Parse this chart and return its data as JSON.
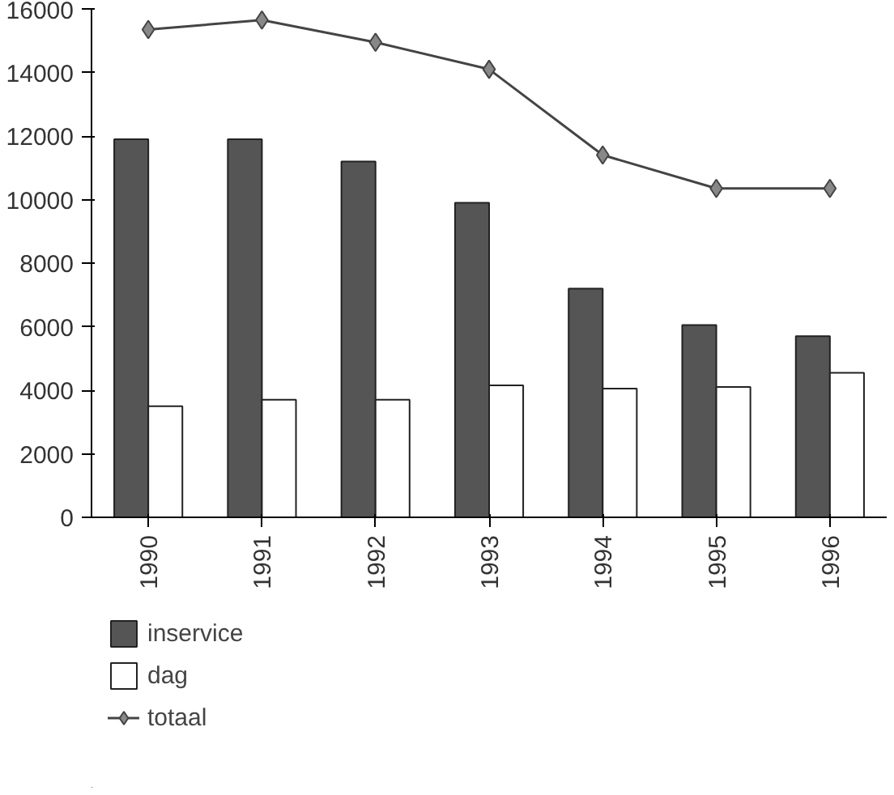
{
  "chart_data": {
    "type": "bar",
    "categories": [
      "1990",
      "1991",
      "1992",
      "1993",
      "1994",
      "1995",
      "1996"
    ],
    "series": [
      {
        "name": "inservice",
        "color": "#555555",
        "values": [
          11900,
          11900,
          11200,
          9900,
          7200,
          6050,
          5700
        ]
      },
      {
        "name": "dag",
        "color": "#ffffff",
        "values": [
          3500,
          3700,
          3700,
          4150,
          4050,
          4100,
          4550
        ]
      },
      {
        "name": "totaal",
        "type": "line",
        "color": "#444444",
        "marker": "diamond",
        "values": [
          15350,
          15650,
          14950,
          14100,
          11400,
          10350,
          10350
        ]
      }
    ],
    "ylim": [
      0,
      16000
    ],
    "yticks": [
      0,
      2000,
      4000,
      6000,
      8000,
      10000,
      12000,
      14000,
      16000
    ],
    "grid": false,
    "legend": "bottom"
  }
}
